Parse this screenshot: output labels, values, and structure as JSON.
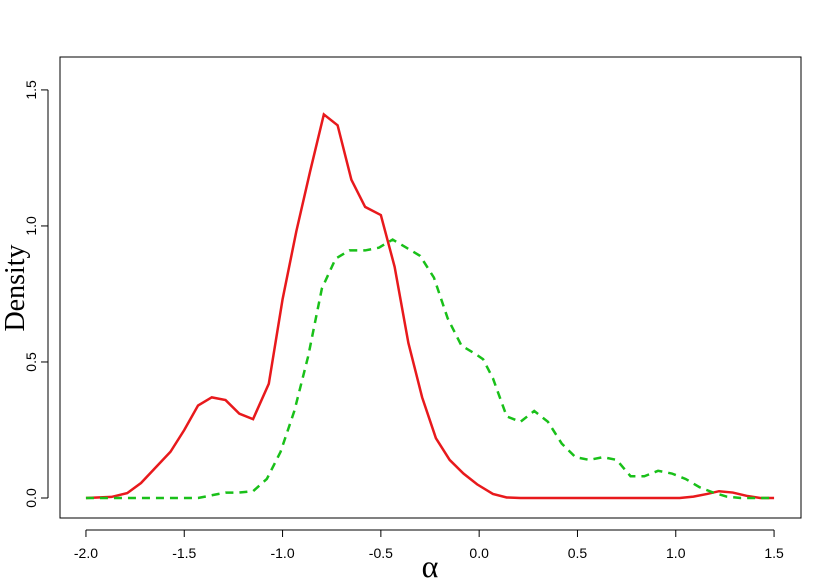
{
  "chart_data": {
    "type": "line",
    "xlabel": "α",
    "ylabel": "Density",
    "xlim": [
      -2.132,
      1.637
    ],
    "ylim": [
      -0.0735,
      1.621
    ],
    "xticks": [
      {
        "value": -2,
        "label": "-2.0"
      },
      -1.5,
      {
        "value": -1,
        "label": "-1.0"
      },
      -0.5,
      {
        "value": 0,
        "label": "0.0"
      },
      0.5,
      {
        "value": 1,
        "label": "1.0"
      },
      1.5
    ],
    "yticks": [
      {
        "value": 0,
        "label": "0.0"
      },
      0.5,
      {
        "value": 1,
        "label": "1.0"
      },
      1.5
    ],
    "series": [
      {
        "color": "#e8191c",
        "linestyle": "solid",
        "x": [
          -2.0,
          -1.87,
          -1.79,
          -1.72,
          -1.57,
          -1.5,
          -1.43,
          -1.36,
          -1.29,
          -1.22,
          -1.15,
          -1.07,
          -1.0,
          -0.93,
          -0.86,
          -0.79,
          -0.72,
          -0.65,
          -0.58,
          -0.5,
          -0.43,
          -0.36,
          -0.29,
          -0.22,
          -0.15,
          -0.08,
          -0.01,
          0.07,
          0.14,
          0.21,
          0.61,
          1.02,
          1.09,
          1.16,
          1.22,
          1.29,
          1.36,
          1.43,
          1.5
        ],
        "values": [
          0,
          0.004,
          0.018,
          0.055,
          0.17,
          0.25,
          0.34,
          0.37,
          0.36,
          0.31,
          0.29,
          0.42,
          0.73,
          0.98,
          1.2,
          1.41,
          1.37,
          1.17,
          1.07,
          1.04,
          0.85,
          0.57,
          0.37,
          0.22,
          0.14,
          0.09,
          0.05,
          0.015,
          0.002,
          0,
          0,
          0,
          0.005,
          0.015,
          0.025,
          0.02,
          0.008,
          0,
          0
        ]
      },
      {
        "color": "#19c019",
        "linestyle": "dashed",
        "x": [
          -2.0,
          -1.43,
          -1.36,
          -1.29,
          -1.22,
          -1.15,
          -1.08,
          -1.01,
          -0.94,
          -0.87,
          -0.8,
          -0.73,
          -0.66,
          -0.58,
          -0.51,
          -0.44,
          -0.37,
          -0.3,
          -0.23,
          -0.16,
          -0.09,
          -0.02,
          0.02,
          0.07,
          0.14,
          0.21,
          0.28,
          0.35,
          0.42,
          0.49,
          0.56,
          0.63,
          0.7,
          0.77,
          0.84,
          0.91,
          0.98,
          1.05,
          1.12,
          1.19,
          1.26,
          1.33,
          1.5
        ],
        "values": [
          0,
          0,
          0.01,
          0.02,
          0.02,
          0.025,
          0.07,
          0.17,
          0.32,
          0.52,
          0.77,
          0.88,
          0.91,
          0.91,
          0.92,
          0.95,
          0.92,
          0.89,
          0.81,
          0.66,
          0.56,
          0.53,
          0.51,
          0.44,
          0.3,
          0.28,
          0.32,
          0.28,
          0.2,
          0.15,
          0.14,
          0.15,
          0.14,
          0.08,
          0.08,
          0.1,
          0.09,
          0.07,
          0.04,
          0.02,
          0.005,
          0,
          0
        ]
      }
    ]
  }
}
